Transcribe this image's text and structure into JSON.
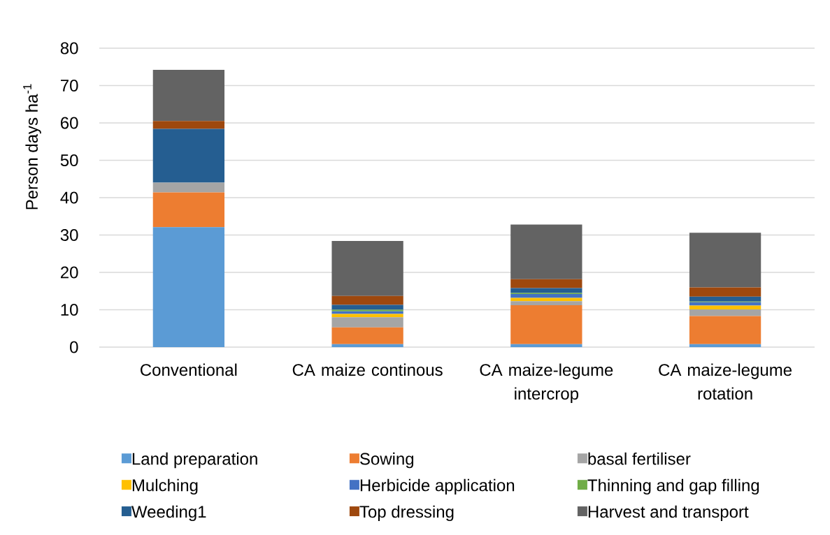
{
  "chart_data": {
    "type": "bar",
    "stacked": true,
    "ylabel": "Person days ha$^{-1}$",
    "categories": [
      "Conventional",
      "CA maize continous",
      "CA maize-legume intercrop",
      "CA maize-legume rotation"
    ],
    "series": [
      {
        "name": "Land preparation",
        "color": "#5b9bd5",
        "values": [
          32.1,
          0.8,
          0.8,
          0.8
        ]
      },
      {
        "name": "Sowing",
        "color": "#ed7d31",
        "values": [
          9.3,
          4.5,
          10.4,
          7.5
        ]
      },
      {
        "name": "basal fertiliser",
        "color": "#a5a5a5",
        "values": [
          2.6,
          2.7,
          1.1,
          1.8
        ]
      },
      {
        "name": "Mulching",
        "color": "#ffc000",
        "values": [
          0,
          0.9,
          0.9,
          1.0
        ]
      },
      {
        "name": "Herbicide application",
        "color": "#4472c4",
        "values": [
          0,
          0.7,
          1.0,
          0.9
        ]
      },
      {
        "name": "Thinning and gap filling",
        "color": "#70ad47",
        "values": [
          0,
          0.4,
          0.3,
          0.2
        ]
      },
      {
        "name": "Weeding1",
        "color": "#255e91",
        "values": [
          14.4,
          1.3,
          1.3,
          1.3
        ]
      },
      {
        "name": "Top dressing",
        "color": "#9e480e",
        "values": [
          2.1,
          2.4,
          2.4,
          2.5
        ]
      },
      {
        "name": "Harvest and transport",
        "color": "#636363",
        "values": [
          13.7,
          14.7,
          14.6,
          14.6
        ]
      }
    ],
    "ylim": [
      0,
      80
    ],
    "yticks": [
      0,
      10,
      20,
      30,
      40,
      50,
      60,
      70,
      80
    ],
    "grid": "y",
    "legend": "bottom"
  }
}
